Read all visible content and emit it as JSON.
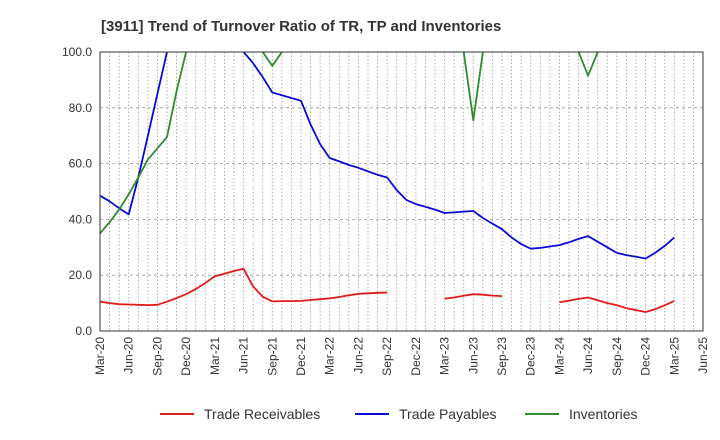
{
  "chart_data": {
    "type": "line",
    "title": "[3911]  Trend of Turnover Ratio of TR, TP and Inventories",
    "xlabel": "",
    "ylabel": "",
    "ylim": [
      0,
      100
    ],
    "y_ticks": [
      "0.0",
      "20.0",
      "40.0",
      "60.0",
      "80.0",
      "100.0"
    ],
    "x_ticks": [
      "Mar-20",
      "Jun-20",
      "Sep-20",
      "Dec-20",
      "Mar-21",
      "Jun-21",
      "Sep-21",
      "Dec-21",
      "Mar-22",
      "Jun-22",
      "Sep-22",
      "Dec-22",
      "Mar-23",
      "Jun-23",
      "Sep-23",
      "Dec-23",
      "Mar-24",
      "Jun-24",
      "Sep-24",
      "Dec-24",
      "Mar-25",
      "Jun-25"
    ],
    "grid": true,
    "legend_position": "bottom",
    "x": [
      "2020-03",
      "2020-04",
      "2020-05",
      "2020-06",
      "2020-07",
      "2020-08",
      "2020-09",
      "2020-10",
      "2020-11",
      "2020-12",
      "2021-01",
      "2021-02",
      "2021-03",
      "2021-04",
      "2021-05",
      "2021-06",
      "2021-07",
      "2021-08",
      "2021-09",
      "2021-10",
      "2021-11",
      "2021-12",
      "2022-01",
      "2022-02",
      "2022-03",
      "2022-04",
      "2022-05",
      "2022-06",
      "2022-07",
      "2022-08",
      "2022-09",
      "2022-10",
      "2022-11",
      "2022-12",
      "2023-01",
      "2023-02",
      "2023-03",
      "2023-04",
      "2023-05",
      "2023-06",
      "2023-07",
      "2023-08",
      "2023-09",
      "2023-10",
      "2023-11",
      "2023-12",
      "2024-01",
      "2024-02",
      "2024-03",
      "2024-04",
      "2024-05",
      "2024-06",
      "2024-07",
      "2024-08",
      "2024-09",
      "2024-10",
      "2024-11",
      "2024-12",
      "2025-01",
      "2025-02",
      "2025-03"
    ],
    "series": [
      {
        "name": "Trade Receivables",
        "color": "#e31a1c",
        "values": [
          10.5,
          10.0,
          9.6,
          9.5,
          9.4,
          9.3,
          9.4,
          10.5,
          11.8,
          13.2,
          15.0,
          17.2,
          19.6,
          20.5,
          21.5,
          22.3,
          16.0,
          12.3,
          10.6,
          10.7,
          10.7,
          10.8,
          11.1,
          11.4,
          11.7,
          12.2,
          12.8,
          13.3,
          13.5,
          13.7,
          13.8,
          null,
          null,
          null,
          null,
          null,
          11.6,
          12.0,
          12.6,
          13.2,
          13.0,
          12.7,
          12.5,
          null,
          null,
          null,
          null,
          null,
          10.3,
          10.9,
          11.5,
          12.0,
          11.0,
          10.0,
          9.2,
          8.2,
          7.5,
          6.8,
          7.8,
          9.2,
          10.8
        ]
      },
      {
        "name": "Trade Payables",
        "color": "#0a0ad6",
        "values": [
          48.5,
          46.5,
          44.0,
          41.8,
          55.0,
          70.0,
          85.0,
          100.0,
          null,
          null,
          null,
          null,
          null,
          null,
          null,
          100.0,
          96.0,
          91.0,
          85.5,
          84.5,
          83.5,
          82.5,
          74.0,
          67.0,
          62.0,
          60.8,
          59.5,
          58.5,
          57.2,
          56.0,
          55.0,
          50.5,
          47.0,
          45.5,
          44.5,
          43.5,
          42.3,
          42.5,
          42.8,
          43.0,
          40.5,
          38.5,
          36.5,
          33.5,
          31.2,
          29.5,
          29.8,
          30.3,
          30.8,
          31.8,
          33.0,
          34.0,
          32.0,
          30.0,
          28.0,
          27.2,
          26.6,
          26.0,
          28.0,
          30.5,
          33.5
        ]
      },
      {
        "name": "Inventories",
        "color": "#2e8b2e",
        "values": [
          35.0,
          39.0,
          43.5,
          49.0,
          55.0,
          61.5,
          65.5,
          69.5,
          86.0,
          100.0,
          null,
          null,
          null,
          null,
          null,
          null,
          null,
          100.0,
          95.0,
          100.0,
          null,
          null,
          null,
          null,
          null,
          null,
          null,
          null,
          null,
          null,
          null,
          null,
          null,
          null,
          null,
          null,
          null,
          null,
          100.0,
          75.5,
          100.0,
          null,
          null,
          null,
          null,
          null,
          null,
          null,
          null,
          null,
          100.0,
          91.5,
          100.0,
          null,
          null,
          null,
          null,
          null,
          null,
          null,
          null
        ]
      }
    ]
  }
}
